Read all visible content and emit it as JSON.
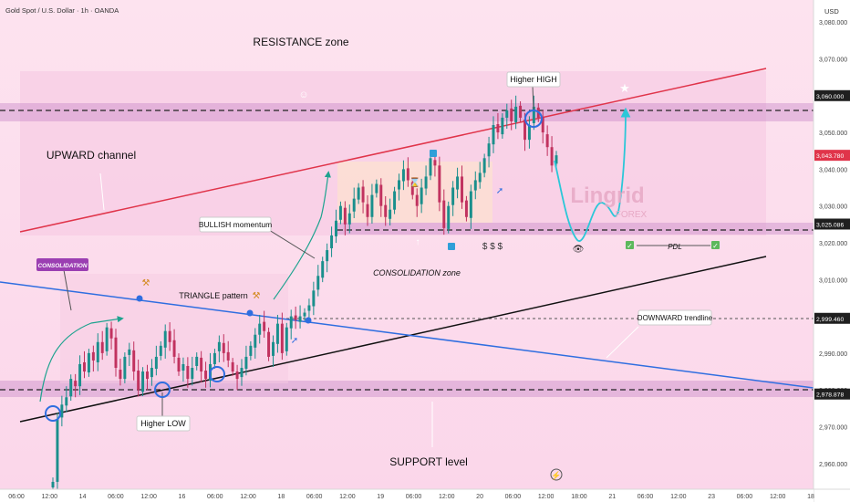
{
  "header": {
    "symbol": "Gold Spot / U.S. Dollar · 1h · OANDA",
    "currency": "USD"
  },
  "colors": {
    "bull": "#1a8f8c",
    "bear": "#c1325f",
    "resistance_line": "#e0344a",
    "support_line": "#111111",
    "downtrend_line": "#2f6ee0",
    "projection": "#2bc7d8",
    "zone_band": "#c98bc9",
    "price_tag": "#e0344a"
  },
  "annotations": {
    "resistance_zone": "RESISTANCE zone",
    "support_level": "SUPPORT level",
    "upward_channel": "UPWARD channel",
    "higher_high": "Higher HIGH",
    "higher_low": "Higher LOW",
    "bullish_momentum": "BULLISH momentum",
    "consolidation_left": "CONSOLIDATION",
    "triangle_pattern": "TRIANGLE pattern",
    "consolidation_zone": "CONSOLIDATION zone",
    "downward_trendline": "DOWNWARD trendline",
    "pdl": "PDL",
    "dollar_marks": "$ $ $",
    "watermark": "Lingrid",
    "watermark_sub": "FOREX"
  },
  "chart_data": {
    "type": "candlestick",
    "title": "Gold Spot / U.S. Dollar · 1h · OANDA",
    "y_axis": {
      "unit": "USD",
      "range": [
        2953,
        3086
      ],
      "ticks": [
        2960,
        2970,
        2980,
        2990,
        3000,
        3010,
        3020,
        3030,
        3040,
        3050,
        3060,
        3070,
        3080
      ],
      "tick_labels": [
        "2,960.000",
        "2,970.000",
        "2,980.000",
        "2,990.000",
        "3,000.000",
        "3,010.000",
        "3,020.000",
        "3,030.000",
        "3,040.000",
        "3,050.000",
        "3,060.000",
        "3,070.000",
        "3,080.000"
      ]
    },
    "x_axis": {
      "tick_labels": [
        "06:00",
        "12:00",
        "14",
        "06:00",
        "12:00",
        "16",
        "06:00",
        "12:00",
        "18",
        "06:00",
        "12:00",
        "19",
        "06:00",
        "12:00",
        "20",
        "06:00",
        "12:00",
        "18:00",
        "21",
        "06:00",
        "12:00",
        "23",
        "06:00",
        "12:00",
        "18"
      ]
    },
    "price_tags": [
      {
        "label": "3,060.000",
        "value": 3060.0,
        "kind": "level"
      },
      {
        "label": "3,043.780",
        "value": 3043.78,
        "kind": "current"
      },
      {
        "label": "3,025.086",
        "value": 3025.086,
        "kind": "level"
      },
      {
        "label": "2,999.460",
        "value": 2999.46,
        "kind": "level"
      },
      {
        "label": "2,978.878",
        "value": 2978.878,
        "kind": "level"
      }
    ],
    "levels": [
      {
        "name": "resistance",
        "value": 3060.0
      },
      {
        "name": "pdl",
        "value": 3025.086
      },
      {
        "name": "triangle-breakout",
        "value": 2999.46
      },
      {
        "name": "support",
        "value": 2978.878
      }
    ],
    "candles_close": [
      2955,
      2972,
      2976,
      2978,
      2983,
      2981,
      2987,
      2985,
      2990,
      2988,
      2993,
      2990,
      2997,
      2994,
      2986,
      2983,
      2989,
      2991,
      2985,
      2980,
      2985,
      2983,
      2986,
      2989,
      2992,
      2996,
      2993,
      2989,
      2985,
      2987,
      2983,
      2986,
      2989,
      2985,
      2983,
      2987,
      2990,
      2993,
      2990,
      2988,
      2985,
      2983,
      2986,
      2989,
      2992,
      2995,
      2998,
      2996,
      2989,
      2993,
      2998,
      2990,
      2997,
      3000,
      2999,
      3000,
      3001,
      3003,
      3007,
      3011,
      3015,
      3018,
      3022,
      3026,
      3030,
      3025,
      3028,
      3032,
      3035,
      3031,
      3027,
      3033,
      3036,
      3030,
      3027,
      3029,
      3034,
      3037,
      3040,
      3037,
      3033,
      3030,
      3035,
      3038,
      3043,
      3041,
      3031,
      3024,
      3030,
      3035,
      3038,
      3031,
      3027,
      3034,
      3037,
      3039,
      3043,
      3047,
      3052,
      3050,
      3054,
      3056,
      3053,
      3057,
      3054,
      3048,
      3052,
      3057,
      3054,
      3050,
      3046,
      3041,
      3043.78
    ]
  }
}
